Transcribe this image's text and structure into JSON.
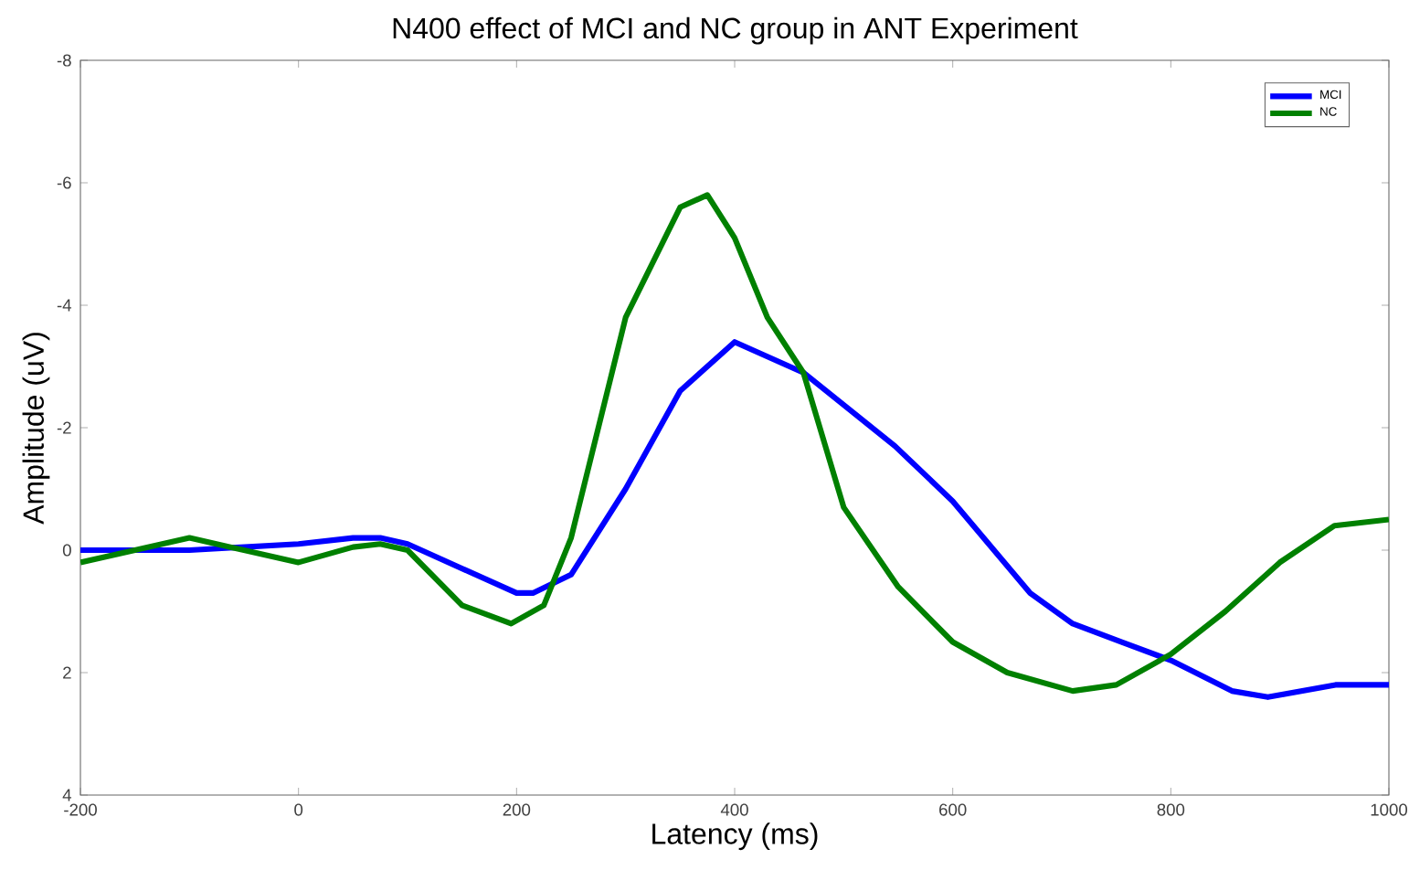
{
  "chart_data": {
    "type": "line",
    "title": "N400 effect of MCI and NC group in ANT Experiment",
    "xlabel": "Latency (ms)",
    "ylabel": "Amplitude (uV)",
    "xlim": [
      -200,
      1000
    ],
    "ylim": [
      4,
      -8
    ],
    "xticks": [
      -200,
      0,
      200,
      400,
      600,
      800,
      1000
    ],
    "yticks": [
      -8,
      -6,
      -4,
      -2,
      0,
      2,
      4
    ],
    "legend": "top right",
    "grid": false,
    "marker": "none",
    "line_style": "solid",
    "series": [
      {
        "name": "MCI",
        "color": "#0000ff",
        "x": [
          -200,
          -100,
          0,
          50,
          75,
          100,
          150,
          200,
          215,
          250,
          300,
          350,
          400,
          463,
          547,
          600,
          671,
          710,
          755,
          800,
          856,
          889,
          951,
          1000
        ],
        "values": [
          0.0,
          0.0,
          -0.1,
          -0.2,
          -0.2,
          -0.1,
          0.3,
          0.7,
          0.7,
          0.4,
          -1.0,
          -2.6,
          -3.4,
          -2.9,
          -1.7,
          -0.8,
          0.7,
          1.2,
          1.5,
          1.8,
          2.3,
          2.4,
          2.2,
          2.2
        ]
      },
      {
        "name": "NC",
        "color": "#008000",
        "x": [
          -200,
          -150,
          -100,
          -50,
          0,
          50,
          75,
          100,
          150,
          195,
          225,
          250,
          300,
          350,
          375,
          400,
          430,
          463,
          500,
          550,
          600,
          650,
          710,
          750,
          800,
          850,
          900,
          950,
          1000
        ],
        "values": [
          0.2,
          0.0,
          -0.2,
          0.0,
          0.2,
          -0.05,
          -0.1,
          0.0,
          0.9,
          1.2,
          0.9,
          -0.2,
          -3.8,
          -5.6,
          -5.8,
          -5.1,
          -3.8,
          -2.9,
          -0.7,
          0.6,
          1.5,
          2.0,
          2.3,
          2.2,
          1.7,
          1.0,
          0.2,
          -0.4,
          -0.5
        ]
      }
    ]
  }
}
